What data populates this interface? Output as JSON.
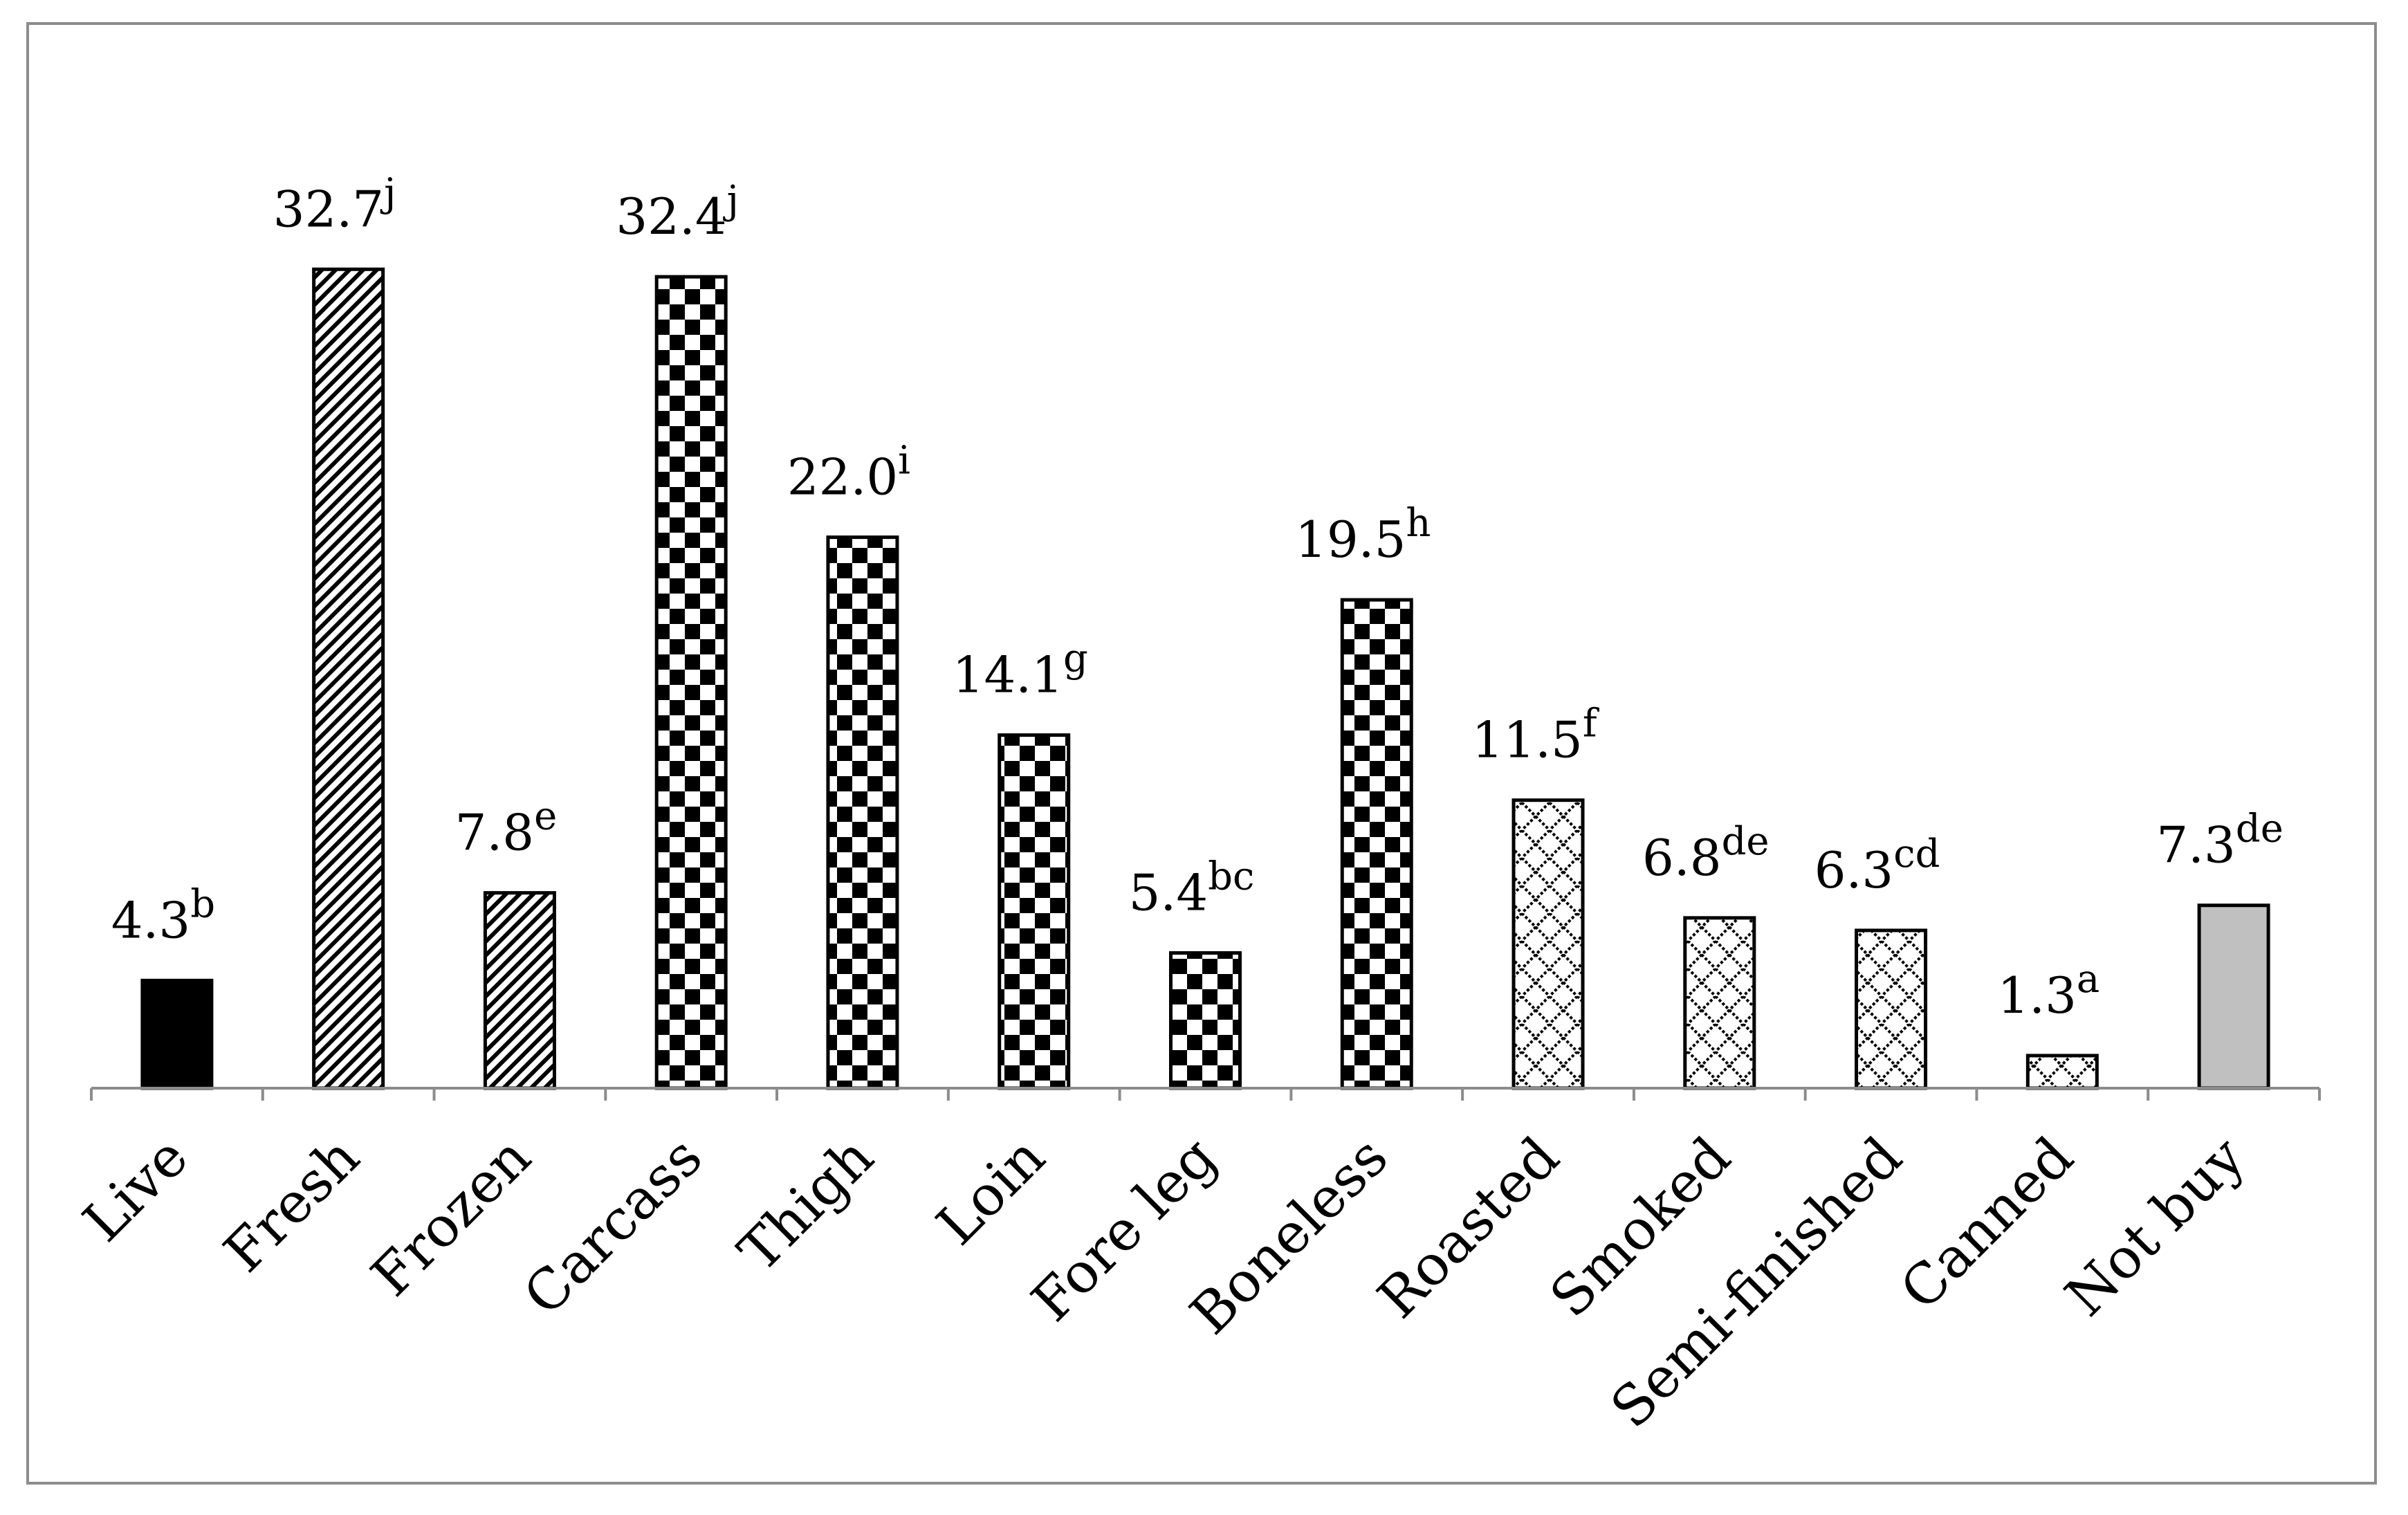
{
  "chart_data": {
    "type": "bar",
    "title": "",
    "xlabel": "",
    "ylabel": "",
    "ylim": [
      0,
      36
    ],
    "grid": false,
    "legend": "none",
    "categories": [
      "Live",
      "Fresh",
      "Frozen",
      "Carcass",
      "Thigh",
      "Loin",
      "Fore leg",
      "Boneless",
      "Roasted",
      "Smoked",
      "Semi-finished",
      "Canned",
      "Not buy"
    ],
    "values": [
      4.3,
      32.7,
      7.8,
      32.4,
      22.0,
      14.1,
      5.4,
      19.5,
      11.5,
      6.8,
      6.3,
      1.3,
      7.3
    ],
    "value_labels": [
      "4.3",
      "32.7",
      "7.8",
      "32.4",
      "22.0",
      "14.1",
      "5.4",
      "19.5",
      "11.5",
      "6.8",
      "6.3",
      "1.3",
      "7.3"
    ],
    "significance_letters": [
      "b",
      "j",
      "e",
      "j",
      "i",
      "g",
      "bc",
      "h",
      "f",
      "de",
      "cd",
      "a",
      "de"
    ],
    "fill_patterns": [
      "solid-black",
      "diagonal-stripes",
      "diagonal-stripes",
      "checkerboard",
      "checkerboard",
      "checkerboard",
      "checkerboard",
      "checkerboard",
      "diamond-lattice",
      "diamond-lattice",
      "diamond-lattice",
      "diamond-lattice",
      "solid-gray"
    ],
    "colors": {
      "axis": "#8c8c8c",
      "bar_outline": "#000000",
      "solid_black": "#000000",
      "solid_gray": "#c0c0c0",
      "pattern_ink": "#000000",
      "background": "#ffffff"
    }
  }
}
